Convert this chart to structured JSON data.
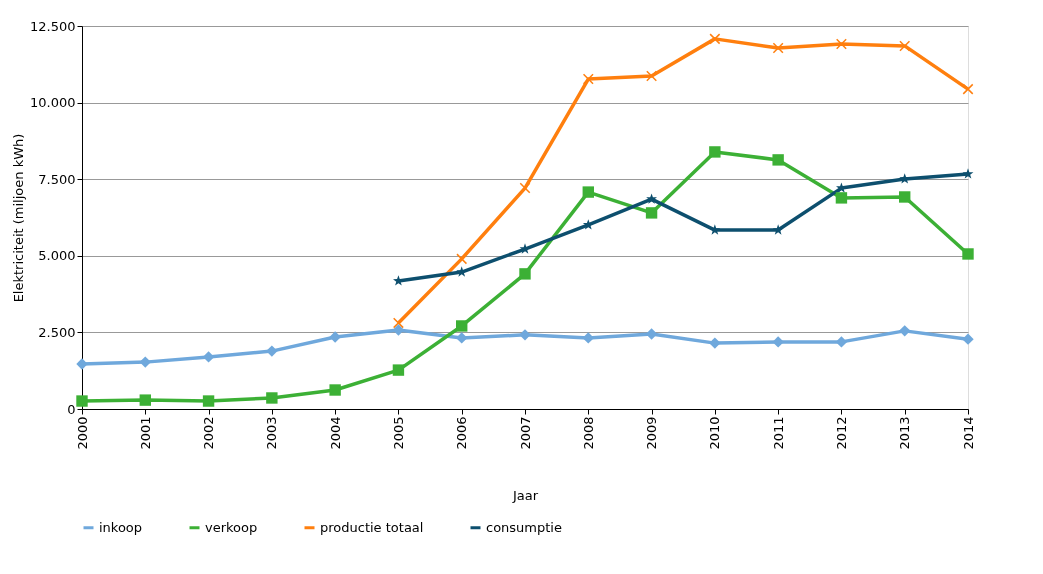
{
  "chart_data": {
    "type": "line",
    "xlabel": "Jaar",
    "ylabel": "Elektriciteit (miljoen kWh)",
    "x": [
      2000,
      2001,
      2002,
      2003,
      2004,
      2005,
      2006,
      2007,
      2008,
      2009,
      2010,
      2011,
      2012,
      2013,
      2014
    ],
    "series": [
      {
        "name": "inkoop",
        "color": "#6fa8dc",
        "marker": "diamond",
        "values": [
          1470,
          1530,
          1700,
          1890,
          2350,
          2580,
          2320,
          2420,
          2320,
          2450,
          2150,
          2190,
          2190,
          2550,
          2280
        ]
      },
      {
        "name": "verkoop",
        "color": "#3cb035",
        "marker": "square",
        "values": [
          260,
          290,
          260,
          360,
          620,
          1270,
          2710,
          4410,
          7080,
          6400,
          8390,
          8130,
          6890,
          6920,
          5060
        ]
      },
      {
        "name": "productie totaal",
        "color": "#ff7f0e",
        "marker": "cross",
        "values": [
          null,
          null,
          null,
          null,
          null,
          2810,
          4900,
          7210,
          10770,
          10870,
          12080,
          11780,
          11910,
          11850,
          10440
        ]
      },
      {
        "name": "consumptie",
        "color": "#0d4f6e",
        "marker": "star",
        "values": [
          null,
          null,
          null,
          null,
          null,
          4180,
          4470,
          5220,
          6010,
          6850,
          5840,
          5840,
          7210,
          7510,
          7670
        ]
      }
    ],
    "xlim": [
      2000,
      2014
    ],
    "xticks": [
      2000,
      2001,
      2002,
      2003,
      2004,
      2005,
      2006,
      2007,
      2008,
      2009,
      2010,
      2011,
      2012,
      2013,
      2014
    ],
    "ylim": [
      0,
      12500
    ],
    "yticks": [
      0,
      {
        "value": 2500,
        "label": "2.500"
      },
      {
        "value": 5000,
        "label": "5.000"
      },
      {
        "value": 7500,
        "label": "7.500"
      },
      {
        "value": 10000,
        "label": "10.000"
      },
      {
        "value": 12500,
        "label": "12.500"
      }
    ],
    "grid": "y",
    "legend": "bottom",
    "line_style": "solid"
  }
}
